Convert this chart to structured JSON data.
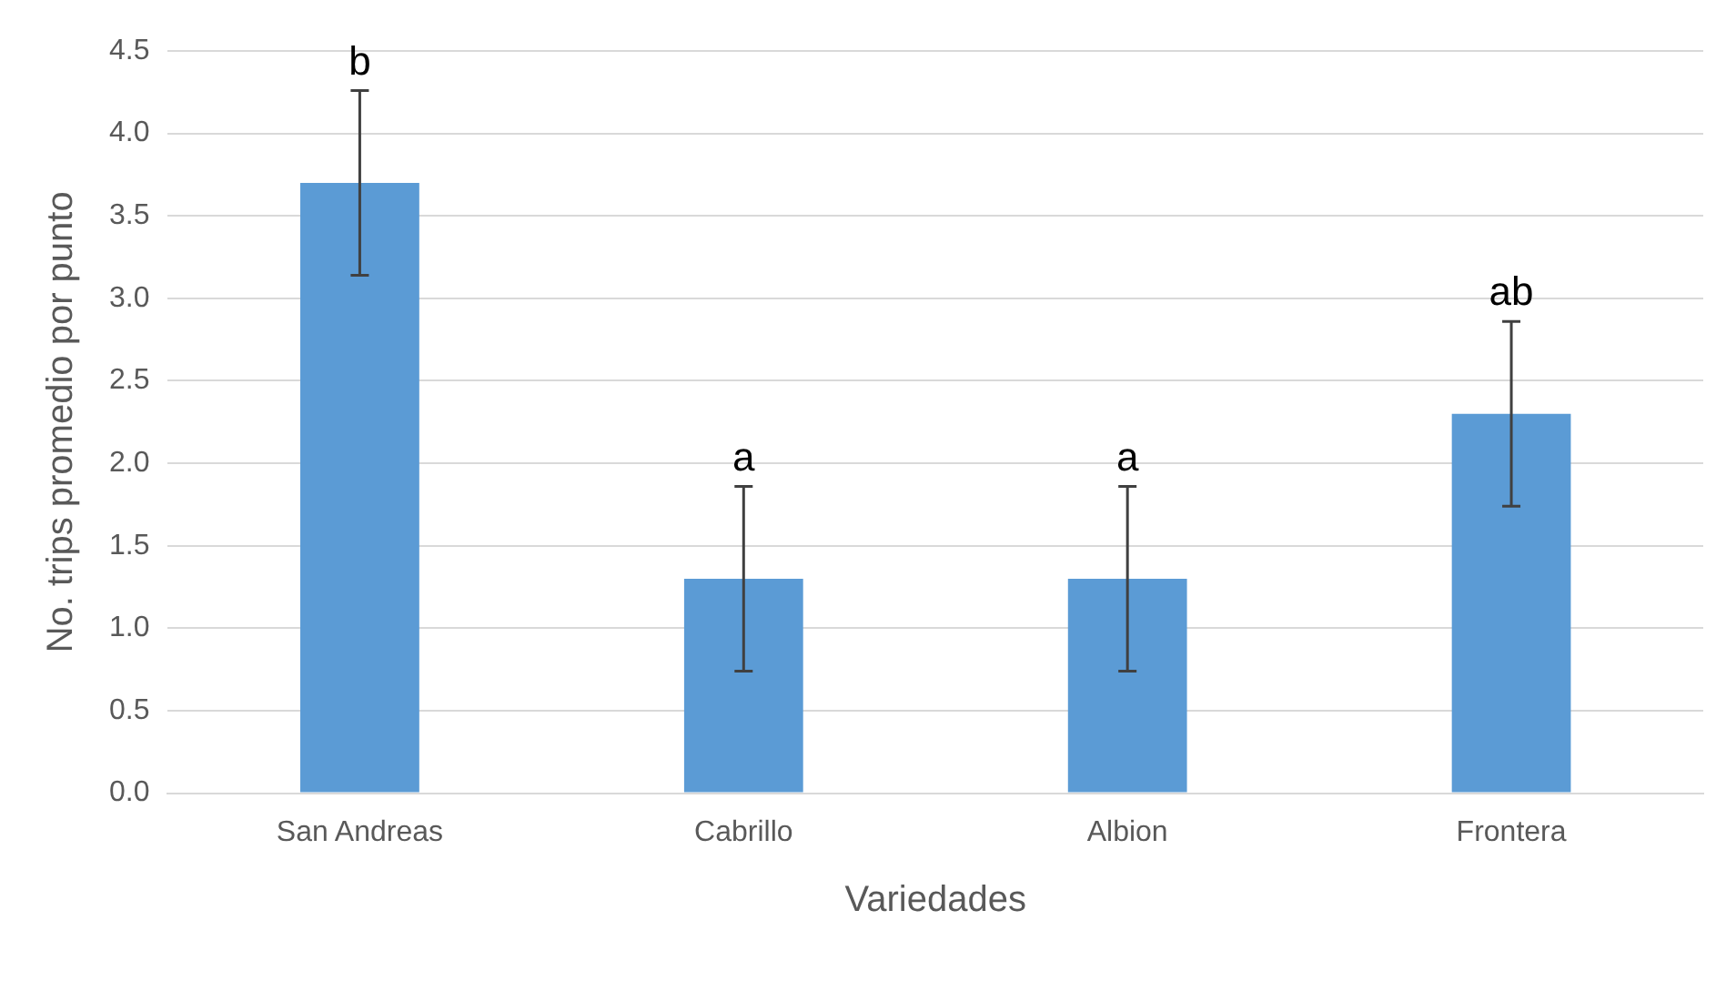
{
  "chart_data": {
    "type": "bar",
    "xlabel": "Variedades",
    "ylabel": "No. trips promedio por punto",
    "categories": [
      "San Andreas",
      "Cabrillo",
      "Albion",
      "Frontera"
    ],
    "values": [
      3.7,
      1.3,
      1.3,
      2.3
    ],
    "errors": [
      0.56,
      0.56,
      0.56,
      0.56
    ],
    "color": "#5b9bd5",
    "ylim": [
      0,
      4.5
    ],
    "yticks": [
      {
        "value": 0,
        "label": "0.0"
      },
      0.5,
      {
        "value": 1,
        "label": "1.0"
      },
      1.5,
      {
        "value": 2,
        "label": "2.0"
      },
      2.5,
      {
        "value": 3,
        "label": "3.0"
      },
      3.5,
      {
        "value": 4,
        "label": "4.0"
      },
      4.5
    ],
    "grid": "y",
    "legend": false,
    "annotations": [
      {
        "text": "b",
        "x": "San Andreas",
        "y": 4.26
      },
      {
        "text": "a",
        "x": "Cabrillo",
        "y": 1.86
      },
      {
        "text": "a",
        "x": "Albion",
        "y": 1.86
      },
      {
        "text": "ab",
        "x": "Frontera",
        "y": 2.86
      }
    ]
  }
}
